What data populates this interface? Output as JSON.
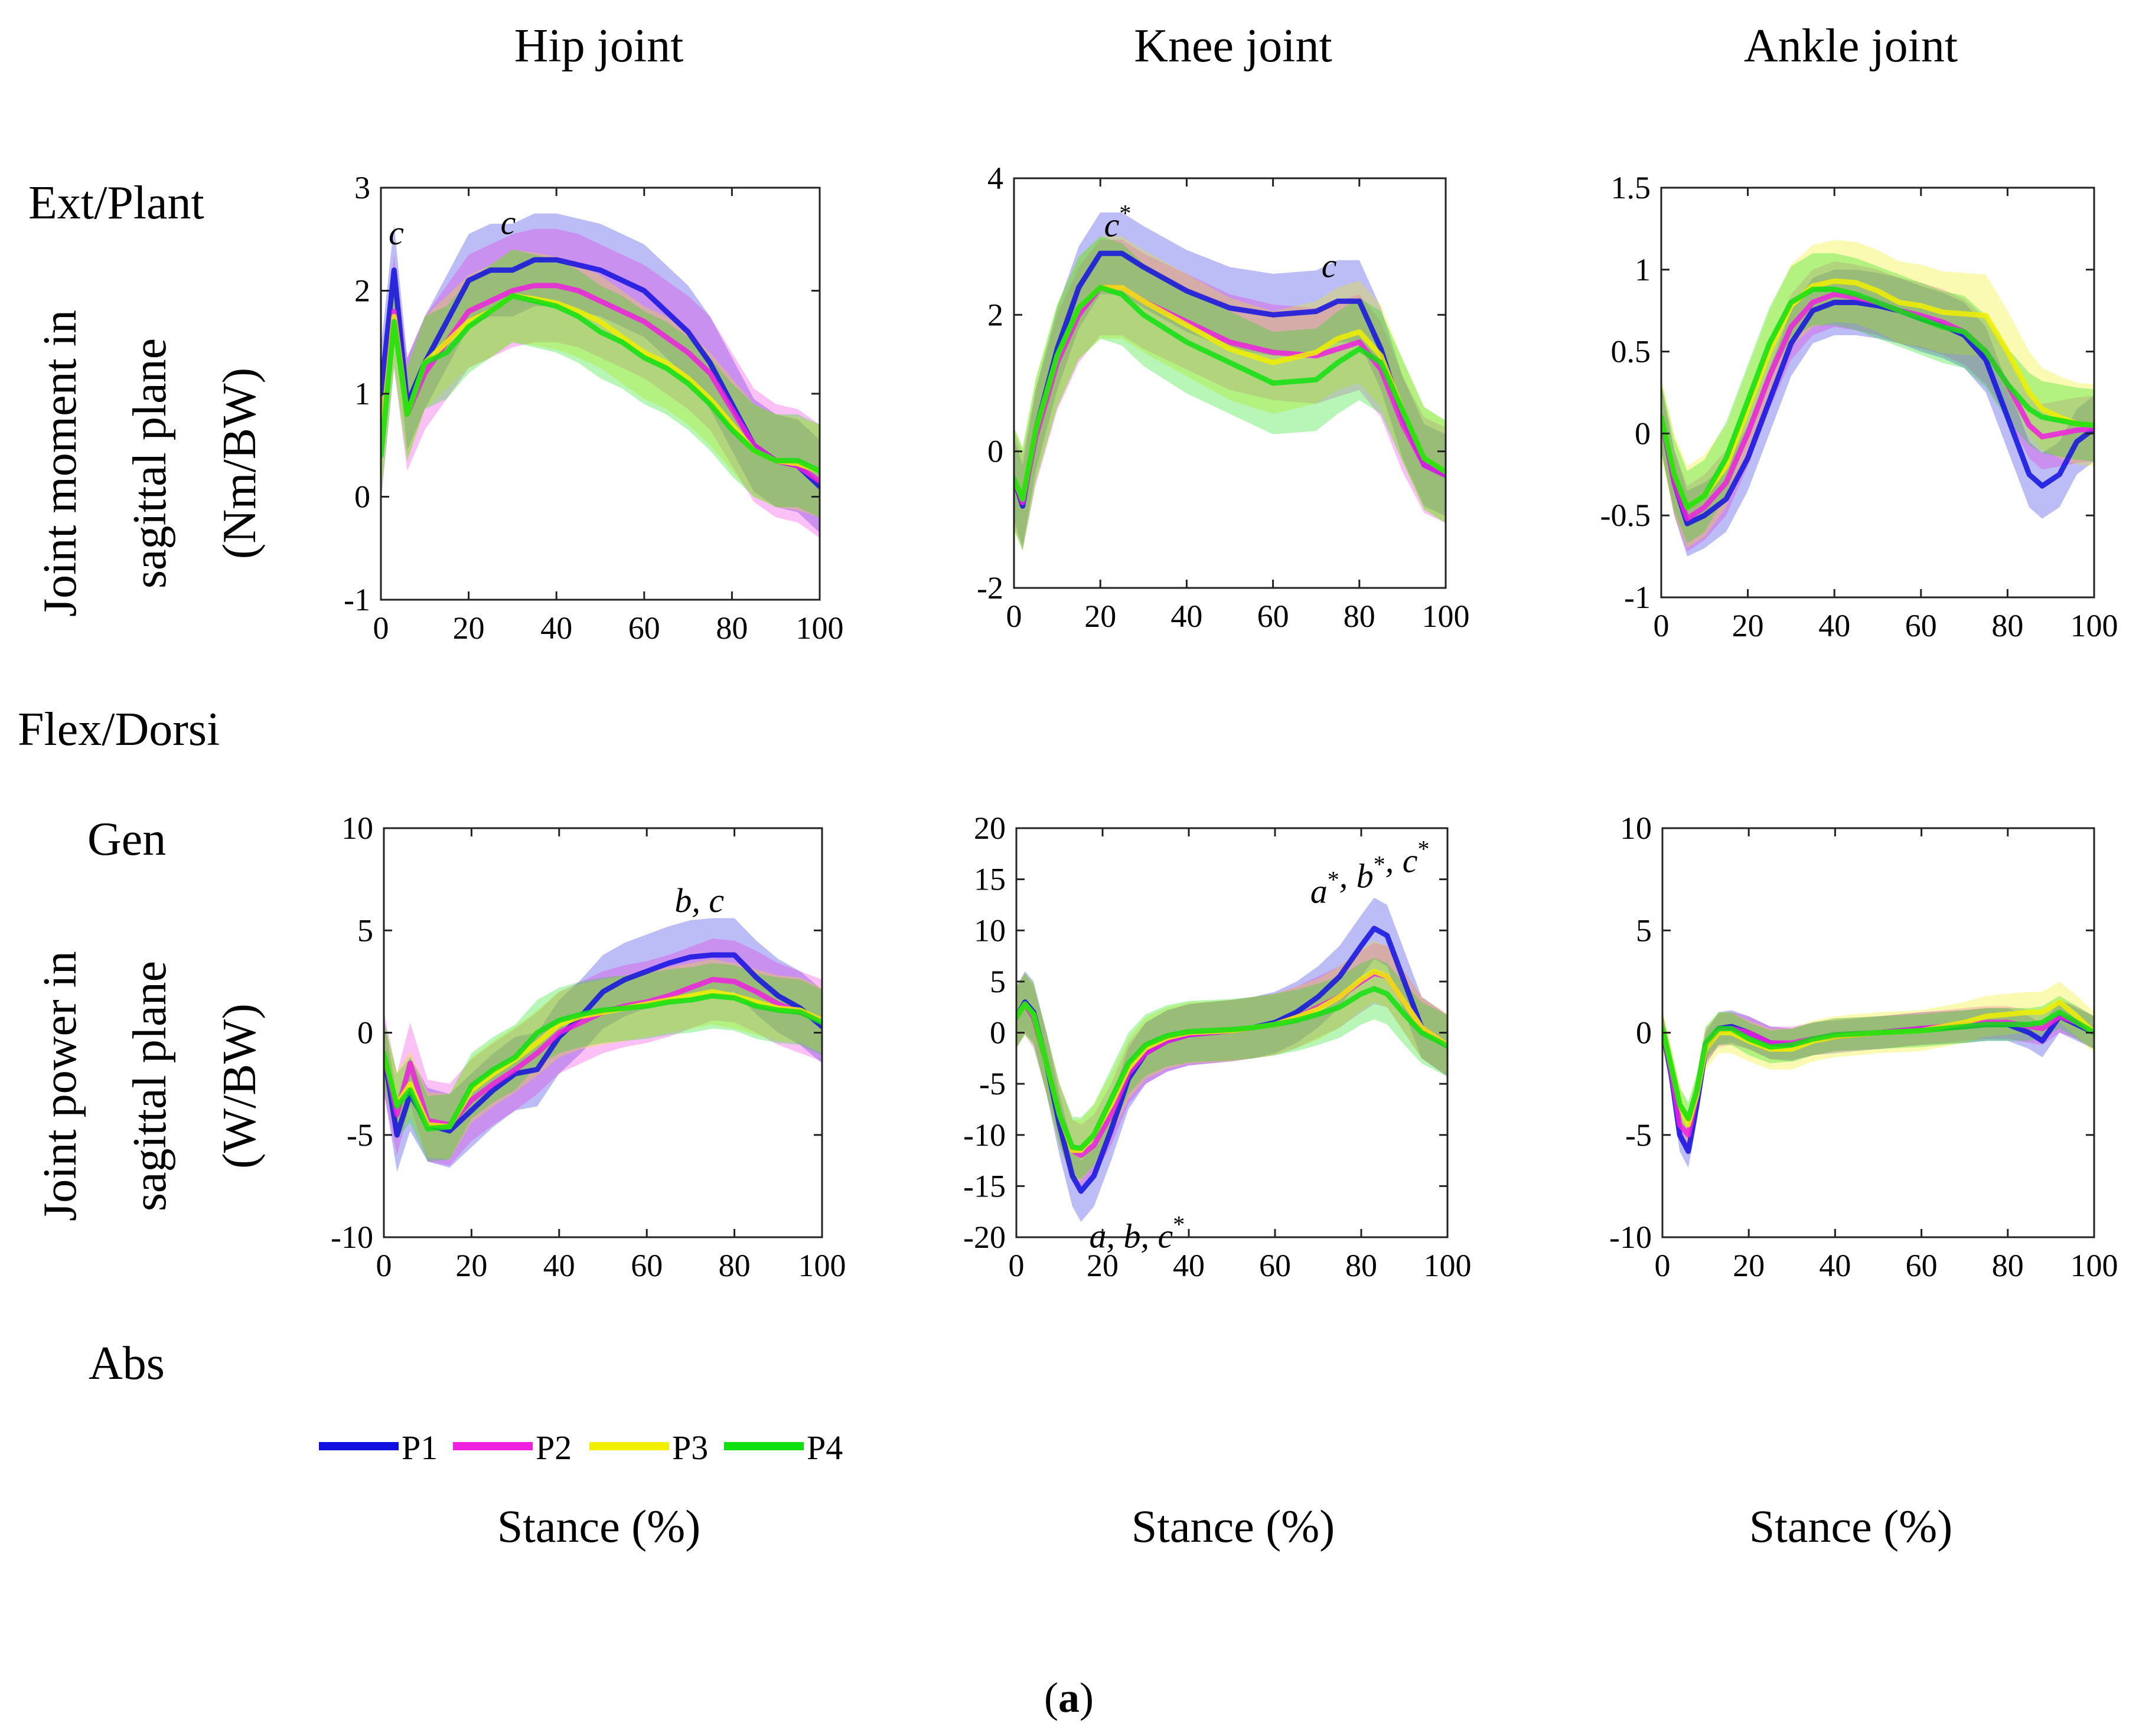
{
  "column_titles": [
    "Hip joint",
    "Knee joint",
    "Ankle joint"
  ],
  "row_labels": {
    "moment_top": "Ext/Plant",
    "moment_bottom": "Flex/Dorsi",
    "moment_ylabel_line1": "Joint moment in",
    "moment_ylabel_line2": "sagittal plane",
    "moment_ylabel_line3": "(Nm/BW)",
    "power_top": "Gen",
    "power_bottom": "Abs",
    "power_ylabel_line1": "Joint power in",
    "power_ylabel_line2": "sagittal plane",
    "power_ylabel_line3": "(W/BW)"
  },
  "x_labels": [
    "Stance (%)",
    "Stance (%)",
    "Stance (%)"
  ],
  "caption": {
    "open": "(",
    "letter": "a",
    "close": ")"
  },
  "legend": [
    {
      "name": "P1",
      "color": "#1010e0"
    },
    {
      "name": "P2",
      "color": "#f020e0"
    },
    {
      "name": "P3",
      "color": "#f0f000"
    },
    {
      "name": "P4",
      "color": "#10e010"
    }
  ],
  "chart_data": [
    {
      "type": "line",
      "title": "Hip joint moment",
      "xlim": [
        0,
        100
      ],
      "ylim": [
        -1,
        3
      ],
      "xticks": [
        0,
        20,
        40,
        60,
        80,
        100
      ],
      "yticks": [
        -1,
        0,
        1,
        2,
        3
      ],
      "x": [
        0,
        3,
        6,
        10,
        15,
        20,
        25,
        30,
        35,
        40,
        45,
        50,
        55,
        60,
        65,
        70,
        75,
        80,
        85,
        90,
        95,
        100
      ],
      "series": [
        {
          "name": "P1",
          "values": [
            1.0,
            2.2,
            0.9,
            1.3,
            1.7,
            2.1,
            2.2,
            2.2,
            2.3,
            2.3,
            2.25,
            2.2,
            2.1,
            2.0,
            1.8,
            1.6,
            1.3,
            0.9,
            0.5,
            0.35,
            0.3,
            0.1
          ],
          "band": 0.45
        },
        {
          "name": "P2",
          "values": [
            0.5,
            1.8,
            0.8,
            1.2,
            1.5,
            1.8,
            1.9,
            2.0,
            2.05,
            2.05,
            2.0,
            1.9,
            1.8,
            1.7,
            1.55,
            1.4,
            1.2,
            0.85,
            0.5,
            0.35,
            0.3,
            0.15
          ],
          "band": 0.55
        },
        {
          "name": "P3",
          "values": [
            0.5,
            1.75,
            0.8,
            1.3,
            1.5,
            1.7,
            1.8,
            1.95,
            1.92,
            1.88,
            1.8,
            1.7,
            1.55,
            1.4,
            1.3,
            1.15,
            0.95,
            0.7,
            0.45,
            0.35,
            0.32,
            0.25
          ],
          "band": 0.45
        },
        {
          "name": "P4",
          "values": [
            0.4,
            1.7,
            0.8,
            1.3,
            1.4,
            1.65,
            1.8,
            1.95,
            1.9,
            1.85,
            1.75,
            1.6,
            1.5,
            1.35,
            1.25,
            1.1,
            0.9,
            0.65,
            0.45,
            0.35,
            0.35,
            0.25
          ],
          "band": 0.45
        }
      ],
      "annotations": [
        {
          "text": "c",
          "sup": "",
          "x": 3.5,
          "y": 2.45
        },
        {
          "text": "c",
          "sup": "",
          "x": 29,
          "y": 2.55
        }
      ]
    },
    {
      "type": "line",
      "title": "Knee joint moment",
      "xlim": [
        0,
        100
      ],
      "ylim": [
        -2,
        4
      ],
      "xticks": [
        0,
        20,
        40,
        60,
        80,
        100
      ],
      "yticks": [
        -2,
        0,
        2,
        4
      ],
      "x": [
        0,
        2,
        5,
        10,
        15,
        20,
        25,
        30,
        40,
        50,
        60,
        70,
        75,
        80,
        85,
        90,
        95,
        100
      ],
      "series": [
        {
          "name": "P1",
          "values": [
            -0.4,
            -0.8,
            0.3,
            1.5,
            2.4,
            2.9,
            2.9,
            2.7,
            2.35,
            2.1,
            2.0,
            2.05,
            2.2,
            2.2,
            1.5,
            0.5,
            -0.2,
            -0.35
          ],
          "band": 0.6
        },
        {
          "name": "P2",
          "values": [
            -0.4,
            -0.75,
            0.2,
            1.3,
            2.0,
            2.4,
            2.4,
            2.2,
            1.9,
            1.6,
            1.45,
            1.4,
            1.5,
            1.6,
            1.2,
            0.4,
            -0.2,
            -0.35
          ],
          "band": 0.7
        },
        {
          "name": "P3",
          "values": [
            -0.4,
            -0.7,
            0.3,
            1.4,
            2.1,
            2.4,
            2.4,
            2.2,
            1.85,
            1.5,
            1.3,
            1.45,
            1.65,
            1.75,
            1.4,
            0.6,
            -0.1,
            -0.3
          ],
          "band": 0.75
        },
        {
          "name": "P4",
          "values": [
            -0.4,
            -0.7,
            0.3,
            1.4,
            2.1,
            2.4,
            2.3,
            2.0,
            1.6,
            1.3,
            1.0,
            1.05,
            1.3,
            1.5,
            1.3,
            0.6,
            -0.1,
            -0.3
          ],
          "band": 0.75
        }
      ],
      "annotations": [
        {
          "text": "c",
          "sup": "*",
          "x": 24,
          "y": 3.15
        },
        {
          "text": "c",
          "sup": "",
          "x": 73,
          "y": 2.55
        }
      ]
    },
    {
      "type": "line",
      "title": "Ankle joint moment",
      "xlim": [
        0,
        100
      ],
      "ylim": [
        -1,
        1.5
      ],
      "xticks": [
        0,
        20,
        40,
        60,
        80,
        100
      ],
      "yticks": [
        -1,
        -0.5,
        0,
        0.5,
        1,
        1.5
      ],
      "x": [
        0,
        3,
        6,
        10,
        15,
        20,
        25,
        30,
        35,
        40,
        45,
        50,
        55,
        60,
        65,
        70,
        75,
        80,
        85,
        88,
        92,
        96,
        100
      ],
      "series": [
        {
          "name": "P1",
          "values": [
            0.1,
            -0.3,
            -0.55,
            -0.5,
            -0.4,
            -0.15,
            0.2,
            0.55,
            0.75,
            0.8,
            0.8,
            0.78,
            0.75,
            0.7,
            0.66,
            0.6,
            0.45,
            0.1,
            -0.25,
            -0.32,
            -0.25,
            -0.05,
            0.03
          ],
          "band": 0.2
        },
        {
          "name": "P2",
          "values": [
            0.1,
            -0.3,
            -0.52,
            -0.45,
            -0.3,
            0.0,
            0.35,
            0.65,
            0.8,
            0.85,
            0.83,
            0.8,
            0.75,
            0.72,
            0.68,
            0.62,
            0.5,
            0.3,
            0.05,
            -0.02,
            0.0,
            0.02,
            0.03
          ],
          "band": 0.2
        },
        {
          "name": "P3",
          "values": [
            0.1,
            -0.25,
            -0.45,
            -0.38,
            -0.2,
            0.15,
            0.5,
            0.78,
            0.9,
            0.93,
            0.92,
            0.87,
            0.8,
            0.78,
            0.74,
            0.73,
            0.72,
            0.5,
            0.25,
            0.15,
            0.1,
            0.06,
            0.05
          ],
          "band": 0.25
        },
        {
          "name": "P4",
          "values": [
            0.1,
            -0.25,
            -0.45,
            -0.38,
            -0.15,
            0.2,
            0.55,
            0.8,
            0.88,
            0.88,
            0.85,
            0.8,
            0.75,
            0.7,
            0.65,
            0.62,
            0.5,
            0.3,
            0.15,
            0.1,
            0.08,
            0.06,
            0.05
          ],
          "band": 0.22
        }
      ],
      "annotations": []
    },
    {
      "type": "line",
      "title": "Hip joint power",
      "xlim": [
        0,
        100
      ],
      "ylim": [
        -10,
        10
      ],
      "xticks": [
        0,
        20,
        40,
        60,
        80,
        100
      ],
      "yticks": [
        -10,
        -5,
        0,
        5,
        10
      ],
      "x": [
        0,
        3,
        6,
        10,
        15,
        20,
        25,
        30,
        35,
        40,
        45,
        50,
        55,
        60,
        65,
        70,
        75,
        80,
        85,
        90,
        95,
        100
      ],
      "series": [
        {
          "name": "P1",
          "values": [
            -1,
            -5,
            -3,
            -4.5,
            -4.8,
            -3.8,
            -2.8,
            -2.0,
            -1.8,
            -0.2,
            0.8,
            2.0,
            2.6,
            3.0,
            3.4,
            3.7,
            3.8,
            3.8,
            2.7,
            1.8,
            1.2,
            0.3
          ],
          "band": 1.8
        },
        {
          "name": "P2",
          "values": [
            -1,
            -4,
            -1.5,
            -4.3,
            -4.5,
            -3.3,
            -2.5,
            -1.8,
            -1.0,
            0.0,
            0.5,
            1.0,
            1.3,
            1.5,
            1.8,
            2.2,
            2.6,
            2.5,
            2.0,
            1.4,
            1.0,
            0.6
          ],
          "band": 2.0
        },
        {
          "name": "P3",
          "values": [
            -1,
            -3.5,
            -2.5,
            -4.5,
            -4.6,
            -2.8,
            -2.0,
            -1.3,
            -0.5,
            0.4,
            0.8,
            1.0,
            1.2,
            1.4,
            1.6,
            1.8,
            2.0,
            1.8,
            1.5,
            1.2,
            1.1,
            0.6
          ],
          "band": 1.6
        },
        {
          "name": "P4",
          "values": [
            -1,
            -3.6,
            -2.8,
            -4.7,
            -4.6,
            -2.6,
            -1.8,
            -1.2,
            0.0,
            0.6,
            0.9,
            1.1,
            1.2,
            1.3,
            1.5,
            1.6,
            1.8,
            1.7,
            1.3,
            1.1,
            1.0,
            0.5
          ],
          "band": 1.6
        }
      ],
      "annotations": [
        {
          "text": "b, c",
          "sup": "",
          "x": 72,
          "y": 5.9
        }
      ]
    },
    {
      "type": "line",
      "title": "Knee joint power",
      "xlim": [
        0,
        100
      ],
      "ylim": [
        -20,
        20
      ],
      "xticks": [
        0,
        20,
        40,
        60,
        80,
        100
      ],
      "yticks": [
        -20,
        -15,
        -10,
        -5,
        0,
        5,
        10,
        15,
        20
      ],
      "x": [
        0,
        2,
        4,
        7,
        10,
        13,
        15,
        18,
        22,
        26,
        30,
        35,
        40,
        45,
        50,
        55,
        60,
        65,
        70,
        75,
        80,
        83,
        86,
        90,
        94,
        100
      ],
      "series": [
        {
          "name": "P1",
          "values": [
            1.5,
            3.0,
            2.0,
            -3.0,
            -9.0,
            -14.0,
            -15.5,
            -14.0,
            -9.5,
            -4.5,
            -2.0,
            -0.8,
            -0.2,
            0.0,
            0.2,
            0.5,
            1.0,
            2.0,
            3.5,
            5.5,
            8.5,
            10.2,
            9.5,
            5.0,
            0.5,
            -1.3
          ],
          "band": 3.0
        },
        {
          "name": "P2",
          "values": [
            1.5,
            2.8,
            1.5,
            -3.0,
            -8.0,
            -11.5,
            -12.0,
            -11.0,
            -8.0,
            -4.0,
            -2.0,
            -0.8,
            -0.2,
            0.0,
            0.2,
            0.5,
            0.8,
            1.5,
            2.5,
            3.5,
            5.0,
            5.8,
            5.5,
            3.0,
            0.5,
            -1.2
          ],
          "band": 3.0
        },
        {
          "name": "P3",
          "values": [
            1.5,
            2.8,
            1.8,
            -3.0,
            -8.0,
            -11.5,
            -11.5,
            -10.0,
            -7.0,
            -3.5,
            -1.5,
            -0.5,
            0.0,
            0.1,
            0.2,
            0.5,
            0.8,
            1.5,
            2.3,
            3.5,
            5.2,
            6.0,
            5.5,
            3.0,
            0.5,
            -1.2
          ],
          "band": 3.0
        },
        {
          "name": "P4",
          "values": [
            1.5,
            2.8,
            1.8,
            -3.0,
            -8.0,
            -11.2,
            -11.3,
            -10.0,
            -6.5,
            -3.0,
            -1.2,
            -0.3,
            0.1,
            0.2,
            0.3,
            0.5,
            0.8,
            1.2,
            1.8,
            2.5,
            3.8,
            4.3,
            3.8,
            1.8,
            0.0,
            -1.3
          ],
          "band": 3.0
        }
      ],
      "annotations": [
        {
          "text": "a, b, c",
          "sup": "",
          "x": 28,
          "y": -21.0,
          "sups": [
            "",
            "",
            "*"
          ]
        },
        {
          "text": "a, b, c",
          "sup": "",
          "x": 82,
          "y": 12.7,
          "sups": [
            "*",
            "*",
            "*"
          ]
        }
      ]
    },
    {
      "type": "line",
      "title": "Ankle joint power",
      "xlim": [
        0,
        100
      ],
      "ylim": [
        -10,
        10
      ],
      "xticks": [
        0,
        20,
        40,
        60,
        80,
        100
      ],
      "yticks": [
        -10,
        -5,
        0,
        5,
        10
      ],
      "x": [
        0,
        2,
        4,
        6,
        8,
        10,
        13,
        16,
        20,
        25,
        30,
        35,
        40,
        50,
        60,
        70,
        75,
        80,
        85,
        88,
        92,
        96,
        100
      ],
      "series": [
        {
          "name": "P1",
          "values": [
            0.2,
            -2.0,
            -5.0,
            -5.8,
            -3.5,
            -0.8,
            0.2,
            0.3,
            0.0,
            -0.5,
            -0.6,
            -0.3,
            -0.2,
            0.0,
            0.2,
            0.3,
            0.4,
            0.4,
            0.0,
            -0.4,
            0.8,
            0.4,
            0.0
          ],
          "band": 0.8
        },
        {
          "name": "P2",
          "values": [
            0.2,
            -1.8,
            -4.5,
            -5.0,
            -3.0,
            -0.6,
            0.1,
            0.2,
            0.0,
            -0.5,
            -0.5,
            -0.3,
            -0.1,
            0.0,
            0.2,
            0.4,
            0.5,
            0.5,
            0.3,
            0.2,
            0.8,
            0.5,
            0.0
          ],
          "band": 0.8
        },
        {
          "name": "P3",
          "values": [
            0.2,
            -1.6,
            -3.5,
            -4.5,
            -3.0,
            -0.8,
            0.0,
            0.0,
            -0.4,
            -0.8,
            -0.8,
            -0.4,
            -0.2,
            0.0,
            0.1,
            0.5,
            0.8,
            0.9,
            1.0,
            1.0,
            1.5,
            0.8,
            0.0
          ],
          "band": 1.0
        },
        {
          "name": "P4",
          "values": [
            0.2,
            -1.6,
            -3.5,
            -4.2,
            -2.8,
            -0.5,
            0.2,
            0.2,
            -0.3,
            -0.7,
            -0.6,
            -0.3,
            -0.1,
            0.0,
            0.1,
            0.3,
            0.4,
            0.4,
            0.4,
            0.5,
            1.0,
            0.5,
            0.0
          ],
          "band": 0.8
        }
      ],
      "annotations": []
    }
  ]
}
